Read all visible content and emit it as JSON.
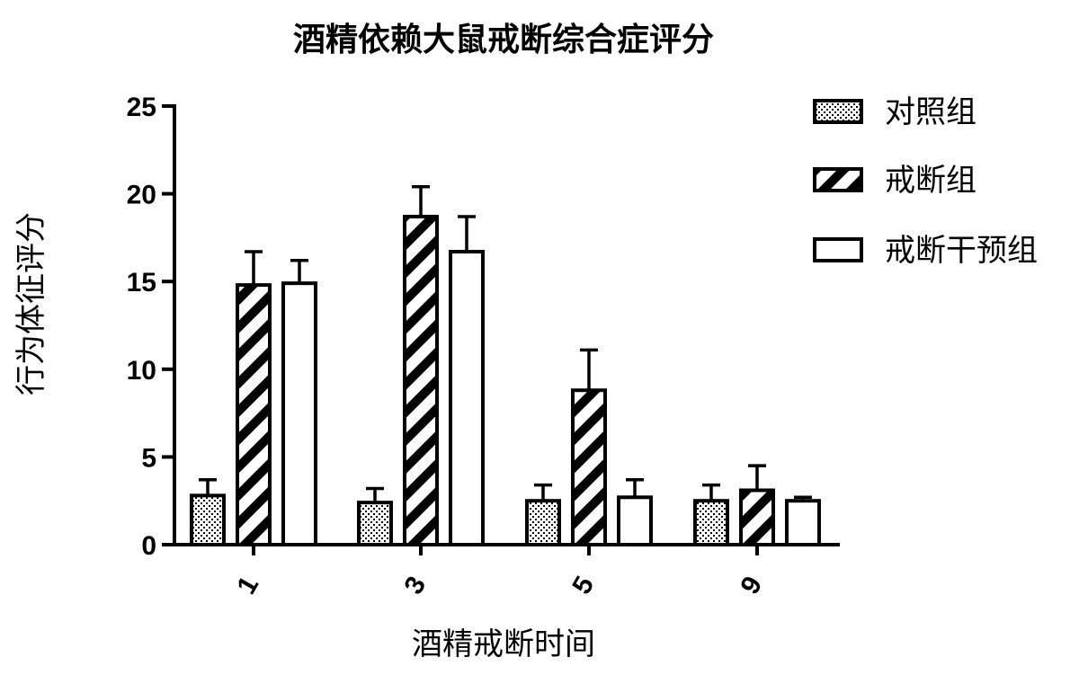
{
  "chart_data": {
    "type": "bar",
    "title": "酒精依赖大鼠戒断综合症评分",
    "xlabel": "酒精戒断时间",
    "ylabel": "行为体征评分",
    "categories": [
      "1",
      "3",
      "5",
      "9"
    ],
    "ylim": [
      0,
      25
    ],
    "yticks": [
      0,
      5,
      10,
      15,
      20,
      25
    ],
    "legend_position": "top-right",
    "error_bars": true,
    "series": [
      {
        "name": "对照组",
        "pattern": "dots",
        "values": [
          2.8,
          2.4,
          2.5,
          2.5
        ],
        "errors": [
          0.9,
          0.8,
          0.9,
          0.9
        ]
      },
      {
        "name": "戒断组",
        "pattern": "diagonal-stripes",
        "values": [
          14.8,
          18.7,
          8.8,
          3.1
        ],
        "errors": [
          1.9,
          1.7,
          2.3,
          1.4
        ]
      },
      {
        "name": "戒断干预组",
        "pattern": "empty",
        "values": [
          14.9,
          16.7,
          2.7,
          2.5
        ],
        "errors": [
          1.3,
          2.0,
          1.0,
          0.2
        ]
      }
    ],
    "colors": {
      "axis": "#000000",
      "fill": "#ffffff",
      "stroke": "#000000"
    }
  }
}
